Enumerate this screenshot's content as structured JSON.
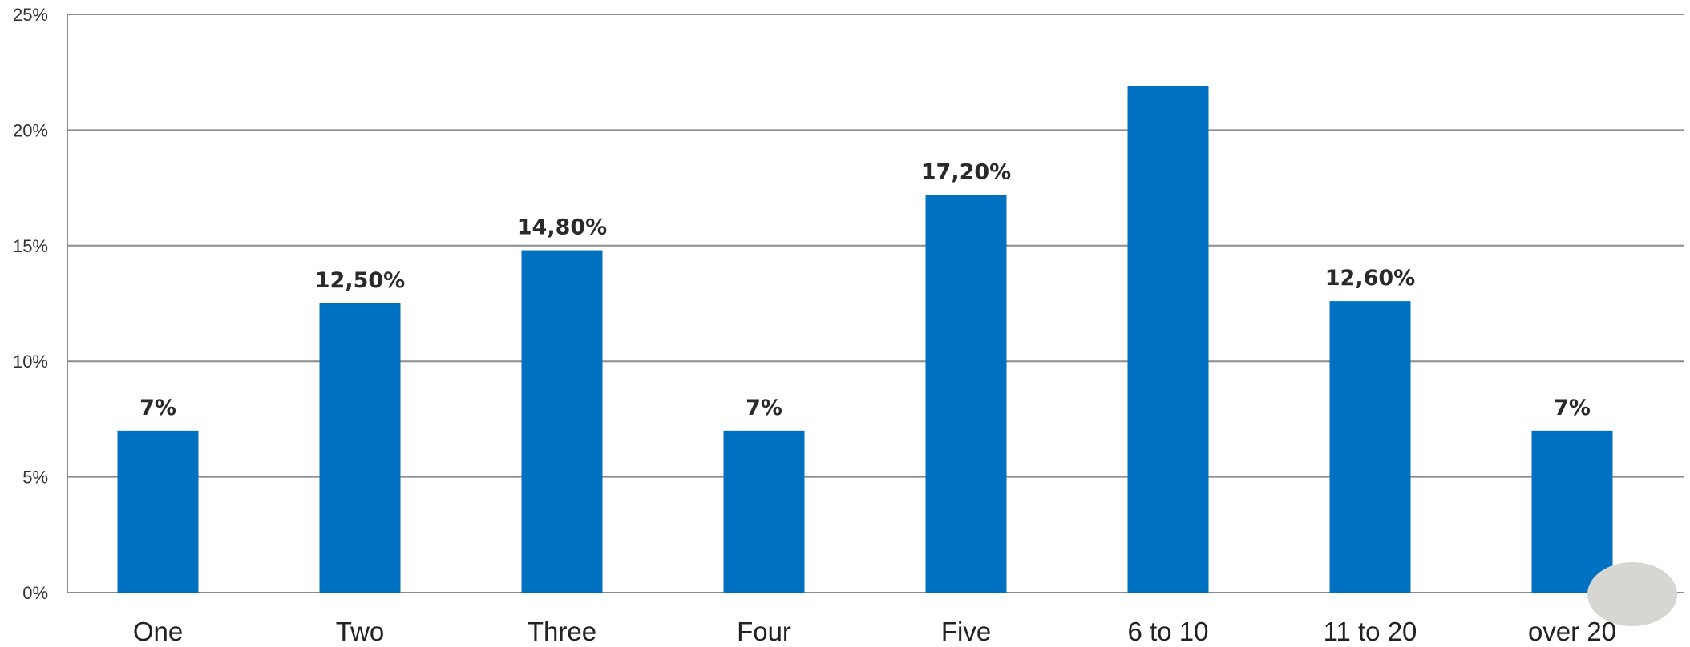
{
  "chart_data": {
    "type": "bar",
    "title": "",
    "xlabel": "",
    "ylabel": "",
    "categories": [
      "One",
      "Two",
      "Three",
      "Four",
      "Five",
      "6 to 10",
      "11 to 20",
      "over 20"
    ],
    "values": [
      7,
      12.5,
      14.8,
      7,
      17.2,
      21.9,
      12.6,
      7
    ],
    "data_labels": [
      "7%",
      "12,50%",
      "14,80%",
      "7%",
      "17,20%",
      "",
      "12,60%",
      "7%"
    ],
    "ylim": [
      0,
      25
    ],
    "yticks": [
      0,
      5,
      10,
      15,
      20,
      25
    ],
    "ytick_labels": [
      "0%",
      "5%",
      "10%",
      "15%",
      "20%",
      "25%"
    ],
    "grid": true,
    "legend": "none",
    "colors": {
      "bar": "#0070C0",
      "grid": "#8c8c8c",
      "decoration": "#d6d6d3"
    }
  }
}
